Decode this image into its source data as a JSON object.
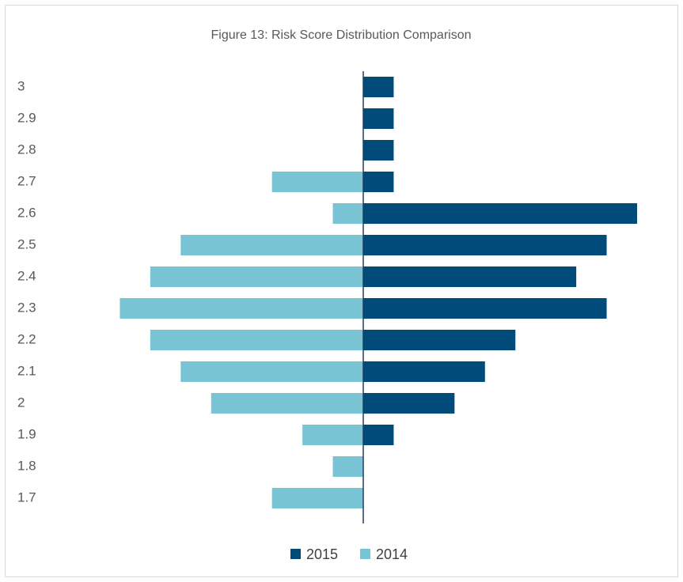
{
  "chart_data": {
    "type": "butterfly-bar",
    "title": "Figure 13: Risk Score Distribution Comparison",
    "categories": [
      "3",
      "2.9",
      "2.8",
      "2.7",
      "2.6",
      "2.5",
      "2.4",
      "2.3",
      "2.2",
      "2.1",
      "2",
      "1.9",
      "1.8",
      "1.7"
    ],
    "series": [
      {
        "name": "2015",
        "color": "#004b7a",
        "side": "right",
        "values": [
          1,
          1,
          1,
          1,
          9,
          8,
          7,
          8,
          5,
          4,
          3,
          1,
          0,
          0
        ]
      },
      {
        "name": "2014",
        "color": "#79c4d4",
        "side": "left",
        "values": [
          0,
          0,
          0,
          3,
          1,
          6,
          7,
          8,
          7,
          6,
          5,
          2,
          1,
          3
        ]
      }
    ]
  }
}
